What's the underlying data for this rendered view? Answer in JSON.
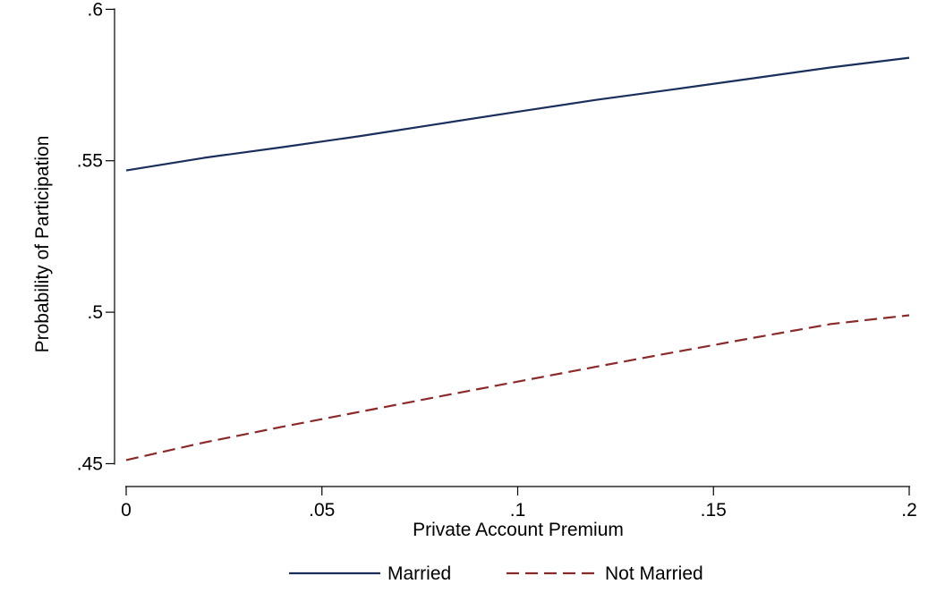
{
  "chart_data": {
    "type": "line",
    "title": "",
    "xlabel": "Private Account Premium",
    "ylabel": "Probability of Participation",
    "xlim": [
      0,
      0.2
    ],
    "ylim": [
      0.446,
      0.601
    ],
    "x_ticks": [
      {
        "value": 0,
        "label": "0"
      },
      {
        "value": 0.05,
        "label": ".05"
      },
      {
        "value": 0.1,
        "label": ".1"
      },
      {
        "value": 0.15,
        "label": ".15"
      },
      {
        "value": 0.2,
        "label": ".2"
      }
    ],
    "y_ticks": [
      {
        "value": 0.45,
        "label": ".45"
      },
      {
        "value": 0.5,
        "label": ".5"
      },
      {
        "value": 0.55,
        "label": ".55"
      },
      {
        "value": 0.6,
        "label": ".6"
      }
    ],
    "grid": false,
    "legend_position": "bottom",
    "x": [
      0,
      0.02,
      0.04,
      0.06,
      0.08,
      0.1,
      0.12,
      0.14,
      0.16,
      0.18,
      0.2
    ],
    "series": [
      {
        "name": "Married",
        "color": "#1a2f5c",
        "dash": "solid",
        "values": [
          0.5468,
          0.551,
          0.5545,
          0.5582,
          0.5622,
          0.5662,
          0.5701,
          0.5736,
          0.5772,
          0.5808,
          0.584
        ]
      },
      {
        "name": "Not Married",
        "color": "#8b2a2a",
        "dash": "dashed",
        "values": [
          0.4512,
          0.457,
          0.4622,
          0.4672,
          0.4722,
          0.4771,
          0.482,
          0.4868,
          0.4915,
          0.4961,
          0.499
        ]
      }
    ]
  }
}
